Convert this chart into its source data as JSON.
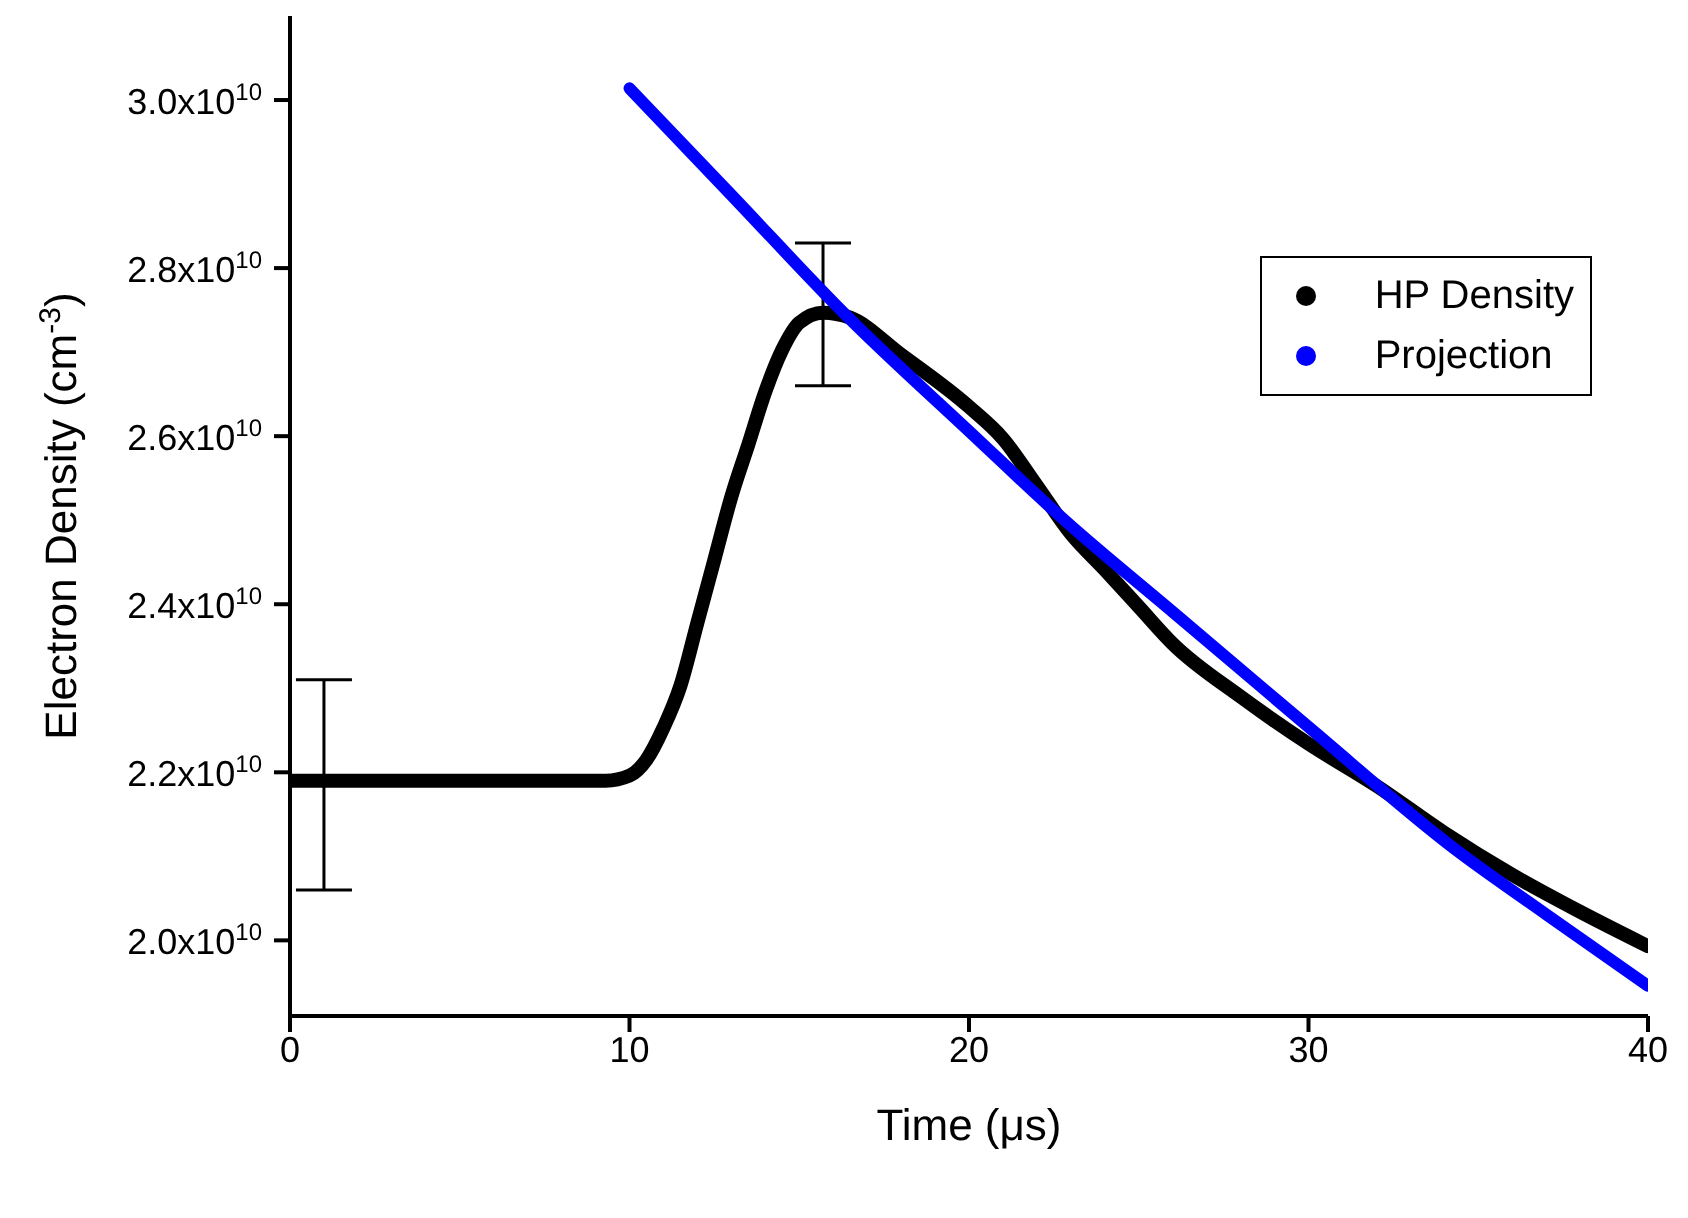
{
  "chart_data": {
    "type": "line",
    "xlabel": "Time (μs)",
    "ylabel": "Electron Density (cm$^{-3}$)",
    "xlim": [
      0,
      40
    ],
    "xticks": [
      0,
      10,
      20,
      30,
      40
    ],
    "ylim": [
      19100000000.0,
      31000000000.0
    ],
    "yticks": [
      {
        "value": 20000000000.0,
        "label": "2.0x10$^{10}$"
      },
      {
        "value": 22000000000.0,
        "label": "2.2x10$^{10}$"
      },
      {
        "value": 24000000000.0,
        "label": "2.4x10$^{10}$"
      },
      {
        "value": 26000000000.0,
        "label": "2.6x10$^{10}$"
      },
      {
        "value": 28000000000.0,
        "label": "2.8x10$^{10}$"
      },
      {
        "value": 30000000000.0,
        "label": "3.0x10$^{10}$"
      }
    ],
    "legend": "top right",
    "grid": false,
    "series": [
      {
        "name": "HP Density",
        "color": "#000000",
        "x": [
          0,
          1,
          9.3,
          10,
          10.5,
          11,
          11.5,
          12,
          12.5,
          13,
          13.5,
          14,
          14.5,
          15,
          15.7,
          16.5,
          18,
          20,
          21,
          22,
          23,
          24,
          25,
          26,
          28,
          30,
          32,
          34,
          36,
          38,
          40
        ],
        "values": [
          21900000000.0,
          21900000000.0,
          21900000000.0,
          21960000000.0,
          22150000000.0,
          22530000000.0,
          23030000000.0,
          23780000000.0,
          24530000000.0,
          25280000000.0,
          25900000000.0,
          26530000000.0,
          27030000000.0,
          27350000000.0,
          27470000000.0,
          27410000000.0,
          26970000000.0,
          26350000000.0,
          25970000000.0,
          25410000000.0,
          24840000000.0,
          24410000000.0,
          23970000000.0,
          23530000000.0,
          22900000000.0,
          22340000000.0,
          21840000000.0,
          21280000000.0,
          20780000000.0,
          20340000000.0,
          19930000000.0
        ],
        "errors": [
          null,
          [
            20600000000.0,
            23100000000.0
          ],
          null,
          null,
          null,
          null,
          null,
          null,
          null,
          null,
          null,
          null,
          null,
          null,
          [
            26600000000.0,
            28300000000.0
          ],
          null,
          null,
          null,
          null,
          null,
          null,
          null,
          null,
          null,
          null,
          null,
          null,
          null,
          null,
          null,
          null
        ]
      },
      {
        "name": "Projection",
        "color": "#0000ff",
        "x": [
          10,
          13,
          16.4,
          20,
          22.9,
          26,
          30,
          34.3,
          37,
          40
        ],
        "values": [
          30140000000.0,
          28870000000.0,
          27430000000.0,
          26060000000.0,
          24970000000.0,
          23910000000.0,
          22540000000.0,
          21090000000.0,
          20310000000.0,
          19460000000.0
        ]
      }
    ]
  }
}
